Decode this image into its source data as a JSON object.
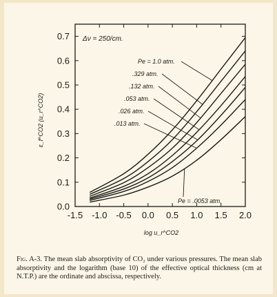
{
  "chart_data": {
    "type": "line",
    "xlabel": "log u_r^CO2",
    "ylabel": "ε_f^CO2 (u_r^CO2)",
    "xlim": [
      -1.5,
      2.0
    ],
    "ylim": [
      0.0,
      0.75
    ],
    "x_ticks": [
      "-1.5",
      "-1.0",
      "-0.5",
      "0.0",
      "0.5",
      "1.0",
      "1.5",
      "2.0"
    ],
    "y_ticks": [
      "0.0",
      "0.1",
      "0.2",
      "0.3",
      "0.4",
      "0.5",
      "0.6",
      "0.7"
    ],
    "grid": false,
    "annotation": "Δν = 250/cm.",
    "series": [
      {
        "name": "Pe = 1.0 atm.",
        "x": [
          -1.2,
          -0.5,
          0.0,
          0.5,
          1.0,
          1.5,
          2.0
        ],
        "y": [
          0.058,
          0.135,
          0.215,
          0.315,
          0.435,
          0.565,
          0.695
        ]
      },
      {
        "name": ".329 atm.",
        "x": [
          -1.2,
          -0.5,
          0.0,
          0.5,
          1.0,
          1.5,
          2.0
        ],
        "y": [
          0.05,
          0.115,
          0.185,
          0.275,
          0.39,
          0.515,
          0.64
        ]
      },
      {
        "name": ".132 atm.",
        "x": [
          -1.2,
          -0.5,
          0.0,
          0.5,
          1.0,
          1.5,
          2.0
        ],
        "y": [
          0.042,
          0.098,
          0.16,
          0.24,
          0.345,
          0.465,
          0.585
        ]
      },
      {
        "name": ".053 atm.",
        "x": [
          -1.2,
          -0.5,
          0.0,
          0.5,
          1.0,
          1.5,
          2.0
        ],
        "y": [
          0.035,
          0.083,
          0.135,
          0.21,
          0.305,
          0.415,
          0.535
        ]
      },
      {
        "name": ".026 atm.",
        "x": [
          -1.2,
          -0.5,
          0.0,
          0.5,
          1.0,
          1.5,
          2.0
        ],
        "y": [
          0.03,
          0.072,
          0.118,
          0.185,
          0.27,
          0.375,
          0.49
        ]
      },
      {
        "name": ".013 atm.",
        "x": [
          -1.2,
          -0.5,
          0.0,
          0.5,
          1.0,
          1.5,
          2.0
        ],
        "y": [
          0.025,
          0.062,
          0.103,
          0.16,
          0.24,
          0.335,
          0.44
        ]
      },
      {
        "name": "Pe = .0053 atm.",
        "x": [
          -1.2,
          -0.5,
          0.0,
          0.5,
          1.0,
          1.5,
          2.0
        ],
        "y": [
          0.018,
          0.047,
          0.08,
          0.125,
          0.19,
          0.275,
          0.37
        ]
      }
    ]
  },
  "caption": {
    "label": "Fig. A-3.",
    "text": "The mean slab absorptivity of CO₂ under various pressures. The mean slab absorptivity and the logarithm (base 10) of the effective optical thickness (cm at N.T.P.) are the ordinate and abscissa, respectively."
  },
  "colors": {
    "ink": "#1c1a16",
    "paper": "#fbf6e7",
    "border": "#f3e7c9"
  }
}
